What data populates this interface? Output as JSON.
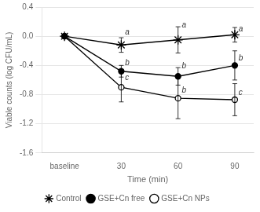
{
  "chart_data": {
    "type": "line",
    "xlabel": "Time (min)",
    "ylabel": "Viable counts (log CFU/mL)",
    "x": [
      0,
      30,
      60,
      90
    ],
    "series": [
      {
        "name": "Control",
        "color": "#000000",
        "marker": "star",
        "values": [
          0.0,
          -0.12,
          -0.05,
          0.02
        ],
        "yerr": [
          0.0,
          0.1,
          0.18,
          0.1
        ]
      },
      {
        "name": "GSE+Cn free",
        "color": "#000000",
        "marker": "circle",
        "values": [
          0.0,
          -0.48,
          -0.55,
          -0.4
        ],
        "yerr": [
          0.0,
          0.08,
          0.12,
          0.2
        ]
      },
      {
        "name": "GSE+Cn NPs",
        "color": "#000000",
        "marker": "open_circle",
        "values": [
          0.0,
          -0.7,
          -0.85,
          -0.87
        ],
        "yerr": [
          0.0,
          0.2,
          0.28,
          0.22
        ]
      }
    ],
    "xlim": [
      -12,
      100
    ],
    "xticks": [
      {
        "value": 0,
        "label": "baseline"
      },
      30,
      60,
      90
    ],
    "ylim": [
      -1.6,
      0.4
    ],
    "yticks": [
      0.4,
      {
        "value": 0,
        "label": "0.0"
      },
      -0.4,
      -0.8,
      -1.2,
      -1.6
    ],
    "grid": "y",
    "legend": "bottom",
    "annotations": [
      {
        "text": "a",
        "x": 32,
        "y": 0
      },
      {
        "text": "b",
        "x": 32,
        "y": -0.42
      },
      {
        "text": "c",
        "x": 32,
        "y": -0.63
      },
      {
        "text": "a",
        "x": 62,
        "y": 0.1
      },
      {
        "text": "b",
        "x": 62,
        "y": -0.46
      },
      {
        "text": "b",
        "x": 62,
        "y": -0.8
      },
      {
        "text": "a",
        "x": 92,
        "y": 0.04
      },
      {
        "text": "b",
        "x": 92,
        "y": -0.36
      },
      {
        "text": "c",
        "x": 92,
        "y": -0.83
      }
    ]
  }
}
